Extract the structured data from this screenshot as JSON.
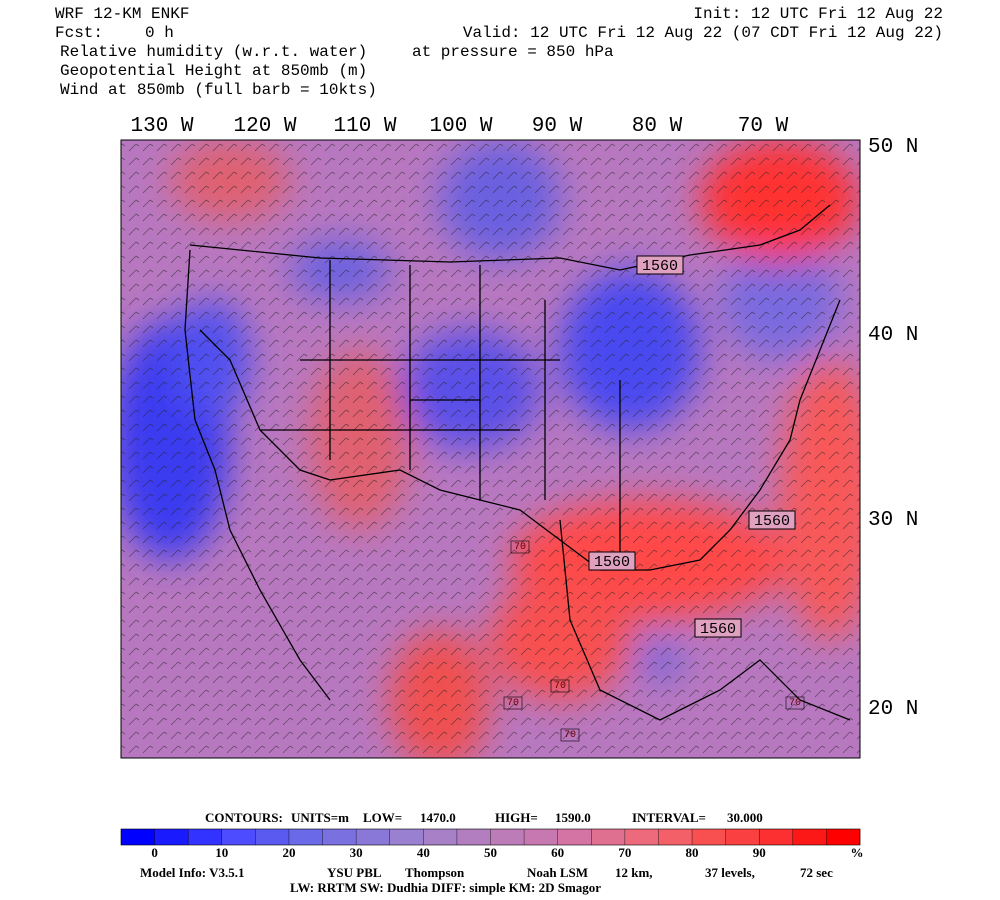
{
  "header": {
    "left": [
      "WRF 12-KM ENKF",
      "Fcst:",
      "0 h",
      "Relative humidity (w.r.t. water)",
      "Geopotential Height at 850mb (m)",
      "Wind at 850mb (full barb = 10kts)"
    ],
    "right": [
      "Init: 12 UTC Fri 12 Aug 22",
      "Valid: 12 UTC Fri 12 Aug 22 (07 CDT Fri 12 Aug 22)",
      "at pressure =  850 hPa"
    ]
  },
  "map": {
    "lon_labels": [
      "130 W",
      "120 W",
      "110 W",
      "100 W",
      "90 W",
      "80 W",
      "70 W"
    ],
    "lat_labels": [
      "50 N",
      "40 N",
      "30 N",
      "20 N"
    ],
    "contour_labels": [
      "1560",
      "1560",
      "1560",
      "1560",
      "70",
      "70",
      "70",
      "70",
      "70"
    ]
  },
  "footer": {
    "contours": [
      "CONTOURS:",
      "UNITS=m",
      "LOW=",
      "1470.0",
      "HIGH=",
      "1590.0",
      "INTERVAL=",
      "30.000"
    ],
    "colorbar": {
      "colors": [
        "#0000ff",
        "#1a1aff",
        "#3333ff",
        "#4d4dff",
        "#5a5af0",
        "#6a6ae8",
        "#7a70e0",
        "#8a78d8",
        "#9a80d0",
        "#a880c8",
        "#b27ec0",
        "#bc7cb8",
        "#c878b0",
        "#d474a4",
        "#e07090",
        "#ec6a7c",
        "#f46068",
        "#f85050",
        "#fa4040",
        "#fc3030",
        "#fd1818",
        "#ff0000"
      ],
      "labels": [
        0,
        10,
        20,
        30,
        40,
        50,
        60,
        70,
        80,
        90
      ],
      "unit": "%"
    },
    "model_info": [
      "Model Info: V3.5.1",
      "YSU PBL",
      "Thompson",
      "Noah LSM",
      "12 km,",
      "37 levels,",
      "72 sec",
      "LW: RRTM SW: Dudhia  DIFF: simple KM: 2D Smagor"
    ]
  }
}
